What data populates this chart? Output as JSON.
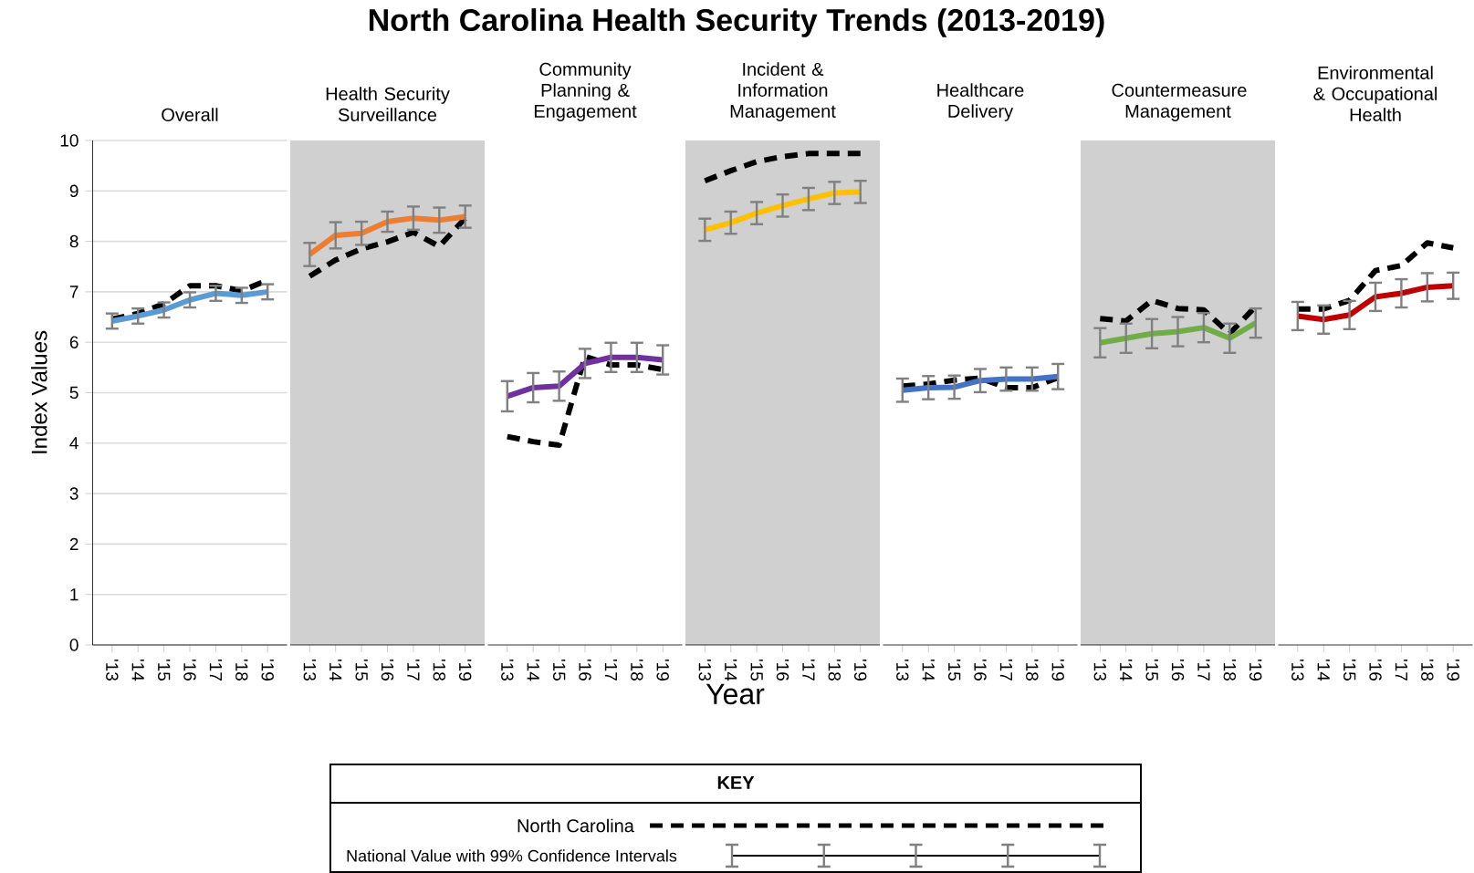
{
  "chart_data": [
    {
      "type": "line",
      "subtitle": "Overall",
      "ylabel": "Index Values",
      "categories": [
        "'13",
        "'14",
        "'15",
        "'16",
        "'17",
        "'18",
        "'19"
      ],
      "ylim": [
        0,
        10
      ],
      "yticks": [
        0,
        1,
        2,
        3,
        4,
        5,
        6,
        7,
        8,
        9,
        10
      ],
      "grid": "y",
      "legend": "bottom",
      "legend_title": "KEY",
      "series": [
        {
          "name": "North Carolina",
          "color": "#000000",
          "line_style": "dashed",
          "values": [
            6.46,
            6.57,
            6.76,
            7.12,
            7.12,
            7.02,
            7.23
          ]
        },
        {
          "name": "National Value with 99% Confidence Intervals",
          "color": "#5b9bd5",
          "line_style": "solid",
          "values": [
            6.42,
            6.52,
            6.64,
            6.84,
            6.97,
            6.93,
            7.0
          ],
          "errors": [
            0.15,
            0.15,
            0.15,
            0.15,
            0.15,
            0.15,
            0.15
          ]
        }
      ]
    },
    {
      "type": "line",
      "subtitle": "Health Security Surveillance",
      "categories": [
        "'13",
        "'14",
        "'15",
        "'16",
        "'17",
        "'18",
        "'19"
      ],
      "ylim": [
        0,
        10
      ],
      "yticks": [
        0,
        1,
        2,
        3,
        4,
        5,
        6,
        7,
        8,
        9,
        10
      ],
      "grid": "y",
      "tick_labels": "x",
      "series": [
        {
          "color": "#000000",
          "line_style": "dashed",
          "values": [
            7.31,
            7.63,
            7.85,
            7.99,
            8.18,
            7.9,
            8.46
          ]
        },
        {
          "color": "#ed7d31",
          "line_style": "solid",
          "values": [
            7.74,
            8.12,
            8.16,
            8.39,
            8.46,
            8.42,
            8.49
          ],
          "errors": [
            0.23,
            0.26,
            0.23,
            0.2,
            0.23,
            0.25,
            0.22
          ]
        }
      ]
    },
    {
      "type": "line",
      "subtitle": "Community Planning & Engagement",
      "categories": [
        "'13",
        "'14",
        "'15",
        "'16",
        "'17",
        "'18",
        "'19"
      ],
      "ylim": [
        0,
        10
      ],
      "yticks": [
        0,
        1,
        2,
        3,
        4,
        5,
        6,
        7,
        8,
        9,
        10
      ],
      "grid": "y",
      "tick_labels": "x",
      "series": [
        {
          "color": "#000000",
          "line_style": "dashed",
          "values": [
            4.13,
            4.03,
            3.96,
            5.72,
            5.55,
            5.55,
            5.46
          ]
        },
        {
          "color": "#7030a0",
          "line_style": "solid",
          "values": [
            4.93,
            5.1,
            5.13,
            5.58,
            5.7,
            5.7,
            5.65
          ],
          "errors": [
            0.3,
            0.29,
            0.29,
            0.29,
            0.29,
            0.29,
            0.29
          ]
        }
      ]
    },
    {
      "type": "line",
      "title": "North Carolina Health Security Trends (2013-2019)",
      "subtitle": "Incident & Information Management",
      "xlabel": "Year",
      "categories": [
        "'13",
        "'14",
        "'15",
        "'16",
        "'17",
        "'18",
        "'19"
      ],
      "ylim": [
        0,
        10
      ],
      "yticks": [
        0,
        1,
        2,
        3,
        4,
        5,
        6,
        7,
        8,
        9,
        10
      ],
      "grid": "y",
      "tick_labels": "x",
      "series": [
        {
          "color": "#000000",
          "line_style": "dashed",
          "values": [
            9.2,
            9.4,
            9.58,
            9.68,
            9.74,
            9.74,
            9.74
          ]
        },
        {
          "color": "#ffc000",
          "line_style": "solid",
          "values": [
            8.23,
            8.37,
            8.56,
            8.71,
            8.84,
            8.96,
            8.98
          ],
          "errors": [
            0.22,
            0.22,
            0.22,
            0.22,
            0.22,
            0.22,
            0.22
          ]
        }
      ]
    },
    {
      "type": "line",
      "subtitle": "Healthcare Delivery",
      "categories": [
        "'13",
        "'14",
        "'15",
        "'16",
        "'17",
        "'18",
        "'19"
      ],
      "ylim": [
        0,
        10
      ],
      "yticks": [
        0,
        1,
        2,
        3,
        4,
        5,
        6,
        7,
        8,
        9,
        10
      ],
      "grid": "y",
      "tick_labels": "x",
      "series": [
        {
          "color": "#000000",
          "line_style": "dashed",
          "values": [
            5.13,
            5.17,
            5.25,
            5.29,
            5.1,
            5.1,
            5.3
          ]
        },
        {
          "color": "#4472c4",
          "line_style": "solid",
          "values": [
            5.05,
            5.1,
            5.11,
            5.24,
            5.27,
            5.27,
            5.32
          ],
          "errors": [
            0.23,
            0.23,
            0.23,
            0.23,
            0.23,
            0.23,
            0.25
          ]
        }
      ]
    },
    {
      "type": "line",
      "subtitle": "Countermeasure Management",
      "categories": [
        "'13",
        "'14",
        "'15",
        "'16",
        "'17",
        "'18",
        "'19"
      ],
      "ylim": [
        0,
        10
      ],
      "yticks": [
        0,
        1,
        2,
        3,
        4,
        5,
        6,
        7,
        8,
        9,
        10
      ],
      "grid": "y",
      "tick_labels": "x",
      "series": [
        {
          "color": "#000000",
          "line_style": "dashed",
          "values": [
            6.47,
            6.42,
            6.83,
            6.67,
            6.64,
            6.17,
            6.71
          ]
        },
        {
          "color": "#70ad47",
          "line_style": "solid",
          "values": [
            5.99,
            6.08,
            6.17,
            6.21,
            6.29,
            6.08,
            6.38
          ],
          "errors": [
            0.29,
            0.29,
            0.29,
            0.29,
            0.29,
            0.29,
            0.29
          ]
        }
      ]
    },
    {
      "type": "line",
      "subtitle": "Environmental & Occupational Health",
      "categories": [
        "'13",
        "'14",
        "'15",
        "'16",
        "'17",
        "'18",
        "'19"
      ],
      "ylim": [
        0,
        10
      ],
      "yticks": [
        0,
        1,
        2,
        3,
        4,
        5,
        6,
        7,
        8,
        9,
        10
      ],
      "grid": "y",
      "tick_labels": "x",
      "series": [
        {
          "color": "#000000",
          "line_style": "dashed",
          "values": [
            6.66,
            6.66,
            6.83,
            7.42,
            7.52,
            7.97,
            7.87
          ]
        },
        {
          "color": "#c00000",
          "line_style": "solid",
          "values": [
            6.52,
            6.45,
            6.54,
            6.9,
            6.97,
            7.09,
            7.12
          ],
          "errors": [
            0.28,
            0.28,
            0.28,
            0.28,
            0.28,
            0.28,
            0.26
          ]
        }
      ]
    }
  ]
}
